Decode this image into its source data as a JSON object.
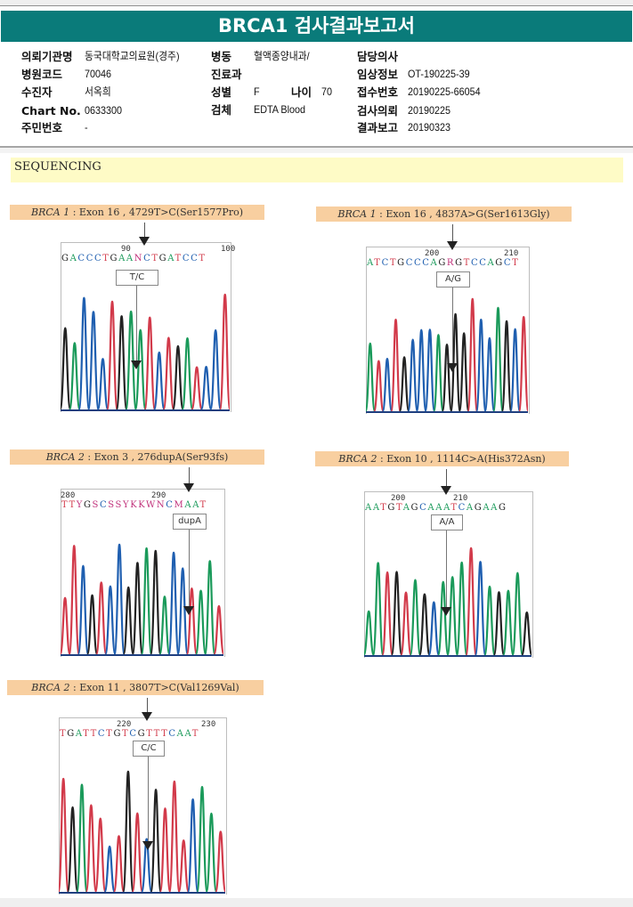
{
  "report": {
    "title": "BRCA1 검사결과보고서"
  },
  "patient_info": {
    "left": [
      {
        "label": "의뢰기관명",
        "value": "동국대학교의료원(경주)"
      },
      {
        "label": "병원코드",
        "value": "70046"
      },
      {
        "label": "수진자",
        "value": "서옥희"
      },
      {
        "label": "Chart No.",
        "value": "0633300"
      },
      {
        "label": "주민번호",
        "value": "-"
      }
    ],
    "middle": {
      "ward_label": "병동",
      "ward_value": "혈액종양내과/",
      "dept_label": "진료과",
      "dept_value": "",
      "sex_label": "성별",
      "sex_value": "F",
      "age_label": "나이",
      "age_value": "70",
      "specimen_label": "검체",
      "specimen_value": "EDTA Blood"
    },
    "right": [
      {
        "label": "담당의사",
        "value": ""
      },
      {
        "label": "임상정보",
        "value": "OT-190225-39"
      },
      {
        "label": "접수번호",
        "value": "20190225-66054"
      },
      {
        "label": "검사의뢰",
        "value": "20190225"
      },
      {
        "label": "결과보고",
        "value": "20190323"
      }
    ]
  },
  "section": {
    "title": "SEQUENCING"
  },
  "variants": [
    {
      "gene": "BRCA 1",
      "description": ": Exon 16 , 4729T>C(Ser1577Pro)",
      "positions": [
        "90",
        "100"
      ],
      "bases": "GACCCTGAANCTGATCCT",
      "call": "T/C"
    },
    {
      "gene": "BRCA 1",
      "description": ": Exon 16 , 4837A>G(Ser1613Gly)",
      "positions": [
        "200",
        "210"
      ],
      "bases": "ATCTGCCCAGRGTCCAGCT",
      "call": "A/G"
    },
    {
      "gene": "BRCA 2",
      "description": ": Exon 3 , 276dupA(Ser93fs)",
      "positions": [
        "280",
        "290"
      ],
      "bases": "TTYGSCSSYKKWNCMAAT",
      "call": "dupA"
    },
    {
      "gene": "BRCA 2",
      "description": ": Exon 10 , 1114C>A(His372Asn)",
      "positions": [
        "200",
        "210"
      ],
      "bases": "AATGTAGCAAATCAGAAG",
      "call": "A/A"
    },
    {
      "gene": "BRCA 2",
      "description": ": Exon 11 , 3807T>C(Val1269Val)",
      "positions": [
        "220",
        "230"
      ],
      "bases": "TGATTCTGTCGTTTCAAT",
      "call": "C/C"
    }
  ],
  "colors": {
    "header_teal": "#0a7b7a",
    "banner_yellow": "#fefbc6",
    "variant_label_orange": "#f8cfa0",
    "base_A": "#1a9a5a",
    "base_C": "#1f5fb0",
    "base_G": "#222222",
    "base_T": "#d23a4a"
  }
}
